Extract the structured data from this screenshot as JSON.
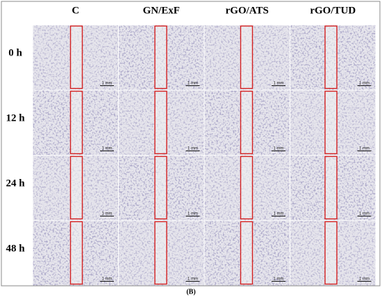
{
  "columns": [
    "C",
    "GN/ExF",
    "rGO/ATS",
    "rGO/TUD"
  ],
  "rows": [
    {
      "label": "0 h",
      "scale_bars": [
        "1 mm",
        "1 mm",
        "1 mm",
        "1 mm"
      ]
    },
    {
      "label": "12 h",
      "scale_bars": [
        "1 mm",
        "1 mm",
        "1 mm",
        "1 mm"
      ]
    },
    {
      "label": "24 h",
      "scale_bars": [
        "1 mm",
        "1 mm",
        "1 mm",
        "1 mm"
      ]
    },
    {
      "label": "48 h",
      "scale_bars": [
        "1 mm",
        "1 mm",
        "1 mm",
        "1 mm"
      ]
    }
  ],
  "caption": "(B)"
}
